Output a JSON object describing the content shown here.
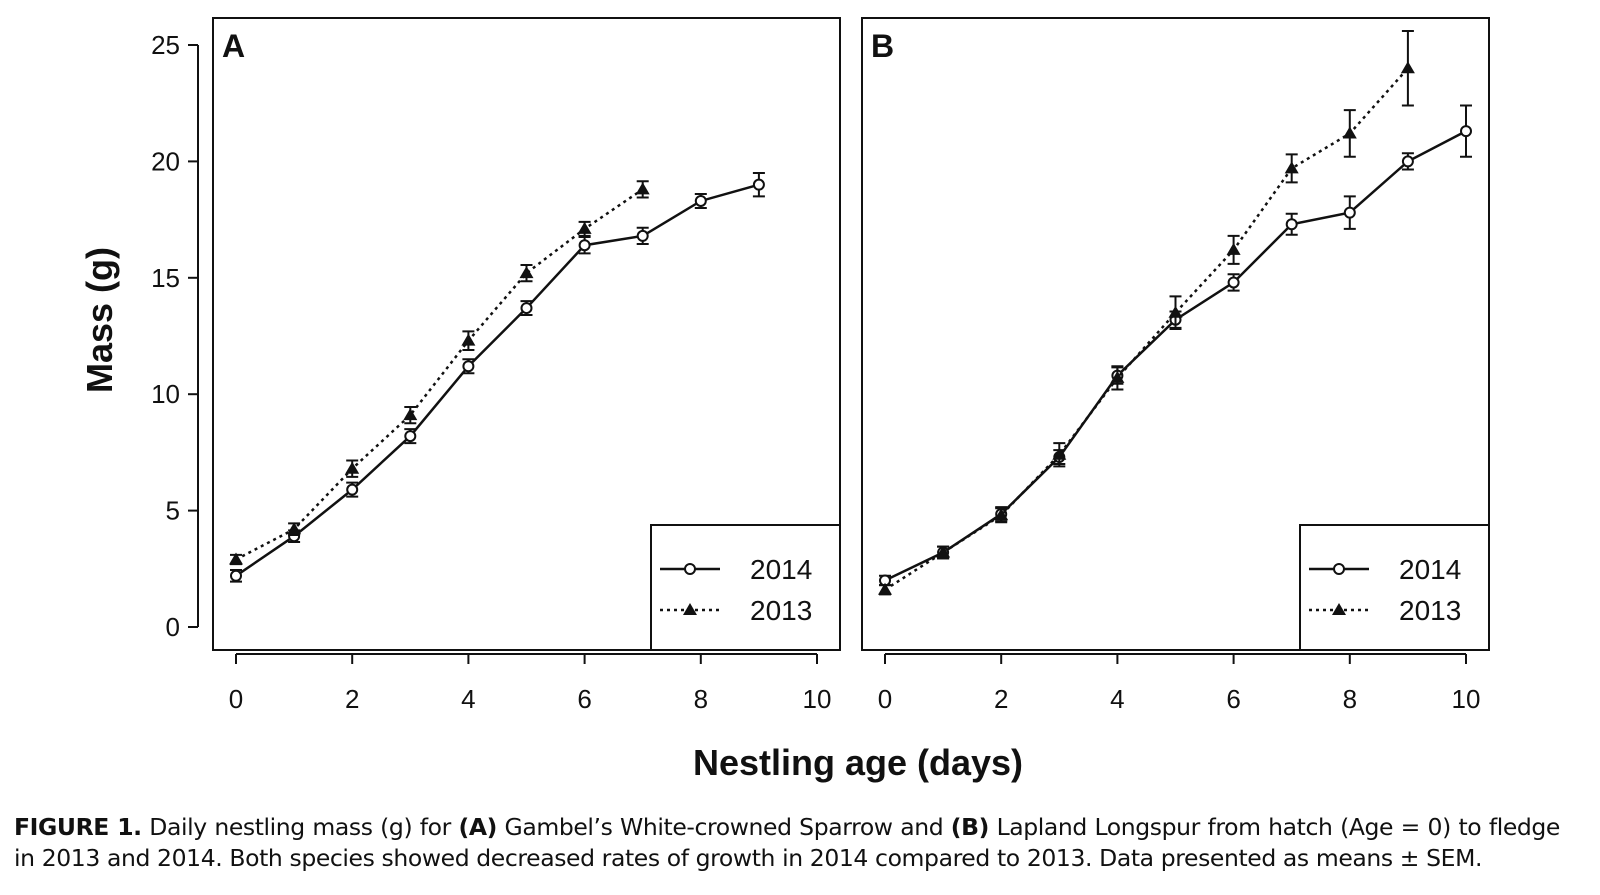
{
  "figure": {
    "ylabel": "Mass (g)",
    "xlabel": "Nestling age (days)"
  },
  "chart_data": [
    {
      "type": "line",
      "panel_label": "A",
      "x": [
        0,
        1,
        2,
        3,
        4,
        5,
        6,
        7,
        8,
        9
      ],
      "xlim": [
        0,
        10
      ],
      "xticks": [
        0,
        2,
        4,
        6,
        8,
        10
      ],
      "ylim": [
        0,
        25
      ],
      "yticks": [
        0,
        5,
        10,
        15,
        20,
        25
      ],
      "legend": "lower right",
      "series": [
        {
          "name": "2014",
          "color": "#111111",
          "marker": "circle",
          "line": "solid",
          "values": [
            2.2,
            3.9,
            5.9,
            8.2,
            11.2,
            13.7,
            16.4,
            16.8,
            18.3,
            19.0
          ],
          "errors": [
            0.25,
            0.25,
            0.3,
            0.3,
            0.3,
            0.3,
            0.35,
            0.35,
            0.3,
            0.5
          ]
        },
        {
          "name": "2013",
          "color": "#111111",
          "marker": "triangle",
          "line": "dotted",
          "values": [
            2.9,
            4.2,
            6.8,
            9.1,
            12.3,
            15.2,
            17.1,
            18.8,
            null,
            null
          ],
          "errors": [
            0.2,
            0.25,
            0.35,
            0.35,
            0.4,
            0.35,
            0.3,
            0.35,
            null,
            null
          ]
        }
      ]
    },
    {
      "type": "line",
      "panel_label": "B",
      "x": [
        0,
        1,
        2,
        3,
        4,
        5,
        6,
        7,
        8,
        9,
        10
      ],
      "xlim": [
        0,
        10
      ],
      "xticks": [
        0,
        2,
        4,
        6,
        8,
        10
      ],
      "ylim": [
        0,
        25
      ],
      "legend": "lower right",
      "series": [
        {
          "name": "2014",
          "color": "#111111",
          "marker": "circle",
          "line": "solid",
          "values": [
            2.0,
            3.2,
            4.85,
            7.3,
            10.8,
            13.2,
            14.8,
            17.3,
            17.8,
            20.0,
            21.3
          ],
          "errors": [
            0.2,
            0.25,
            0.3,
            0.3,
            0.35,
            0.35,
            0.35,
            0.45,
            0.7,
            0.35,
            1.1
          ]
        },
        {
          "name": "2013",
          "color": "#111111",
          "marker": "triangle",
          "line": "dotted",
          "values": [
            1.6,
            3.2,
            4.8,
            7.4,
            10.7,
            13.5,
            16.2,
            19.7,
            21.2,
            24.0,
            null
          ],
          "errors": [
            0.2,
            0.25,
            0.3,
            0.5,
            0.5,
            0.7,
            0.6,
            0.6,
            1.0,
            1.6,
            null
          ]
        }
      ]
    }
  ],
  "caption": [
    {
      "text": "FIGURE 1.",
      "bold": true
    },
    {
      "text": " Daily nestling mass (g) for ",
      "bold": false
    },
    {
      "text": "(A)",
      "bold": true
    },
    {
      "text": " Gambel’s White-crowned Sparrow and ",
      "bold": false
    },
    {
      "text": "(B)",
      "bold": true
    },
    {
      "text": " Lapland Longspur from hatch (Age = 0) to fledge in 2013 and 2014. Both species showed decreased rates of growth in 2014 compared to 2013. Data presented as means ± SEM.",
      "bold": false
    }
  ]
}
